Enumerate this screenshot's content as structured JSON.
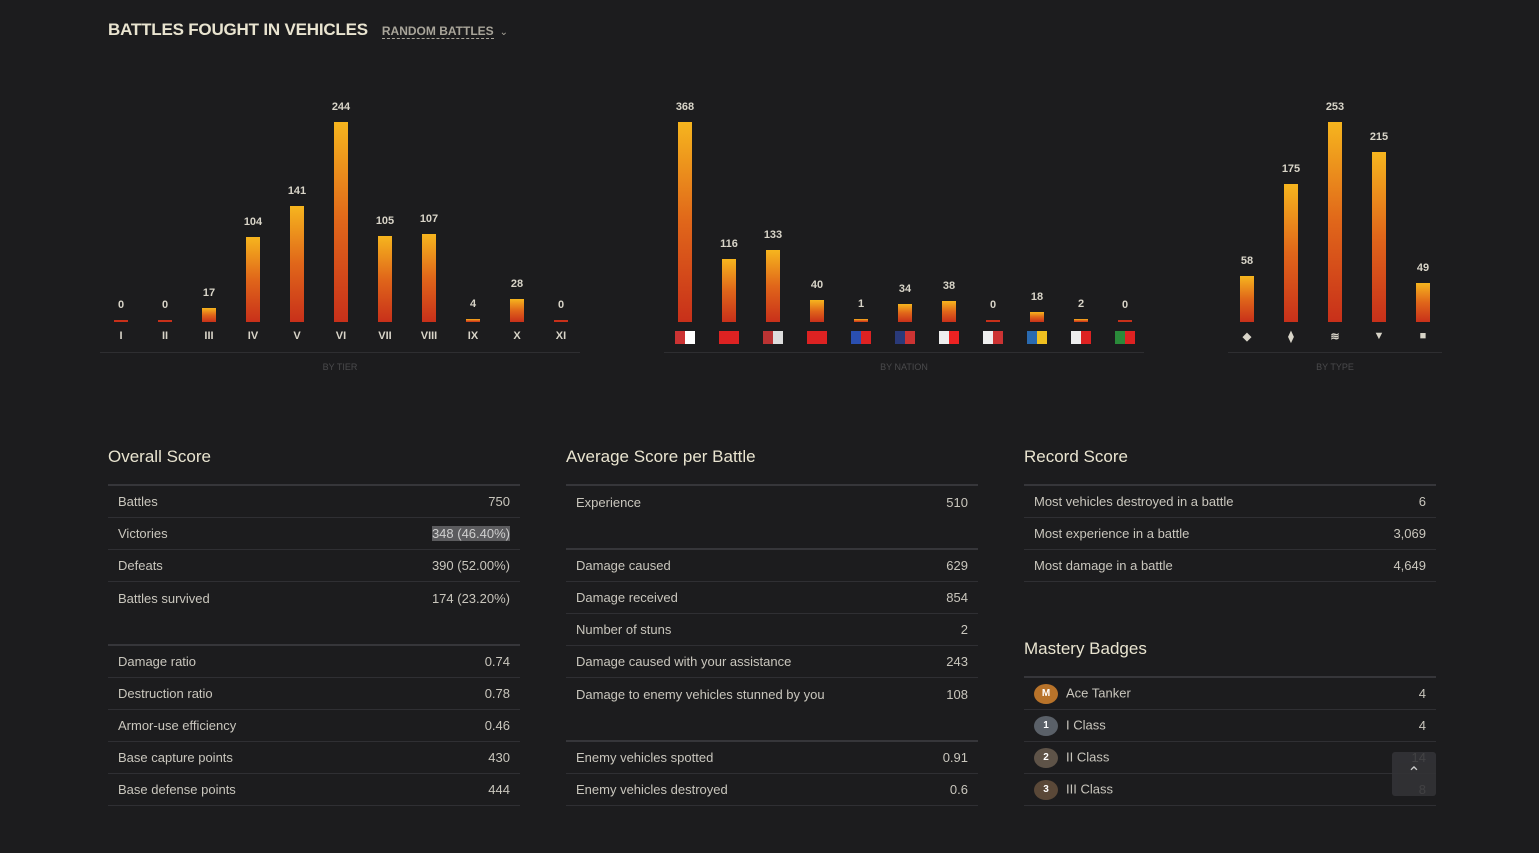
{
  "header": {
    "title": "BATTLES FOUGHT IN VEHICLES",
    "mode": "RANDOM BATTLES"
  },
  "chart_data": [
    {
      "type": "bar",
      "title": "BY TIER",
      "categories": [
        "I",
        "II",
        "III",
        "IV",
        "V",
        "VI",
        "VII",
        "VIII",
        "IX",
        "X",
        "XI"
      ],
      "values": [
        0,
        0,
        17,
        104,
        141,
        244,
        105,
        107,
        4,
        28,
        0
      ]
    },
    {
      "type": "bar",
      "title": "BY NATION",
      "categories": [
        "germany",
        "ussr",
        "usa",
        "china",
        "france",
        "uk",
        "japan",
        "czech",
        "sweden",
        "poland",
        "italy"
      ],
      "values": [
        368,
        116,
        133,
        40,
        1,
        34,
        38,
        0,
        18,
        2,
        0
      ]
    },
    {
      "type": "bar",
      "title": "BY TYPE",
      "categories": [
        "light-tank",
        "medium-tank",
        "heavy-tank",
        "tank-destroyer",
        "spg"
      ],
      "values": [
        58,
        175,
        253,
        215,
        49
      ]
    }
  ],
  "overall": {
    "title": "Overall Score",
    "groups": [
      [
        [
          "Battles",
          "750"
        ],
        [
          "Victories",
          "348 (46.40%)"
        ],
        [
          "Defeats",
          "390 (52.00%)"
        ],
        [
          "Battles survived",
          "174 (23.20%)"
        ]
      ],
      [
        [
          "Damage ratio",
          "0.74"
        ],
        [
          "Destruction ratio",
          "0.78"
        ],
        [
          "Armor-use efficiency",
          "0.46"
        ],
        [
          "Base capture points",
          "430"
        ],
        [
          "Base defense points",
          "444"
        ]
      ]
    ]
  },
  "average": {
    "title": "Average Score per Battle",
    "groups": [
      [
        [
          "Experience",
          "510"
        ]
      ],
      [
        [
          "Damage caused",
          "629"
        ],
        [
          "Damage received",
          "854"
        ],
        [
          "Number of stuns",
          "2"
        ],
        [
          "Damage caused with your assistance",
          "243"
        ],
        [
          "Damage to enemy vehicles stunned by you",
          "108"
        ]
      ],
      [
        [
          "Enemy vehicles spotted",
          "0.91"
        ],
        [
          "Enemy vehicles destroyed",
          "0.6"
        ]
      ]
    ]
  },
  "record": {
    "title": "Record Score",
    "groups": [
      [
        [
          "Most vehicles destroyed in a battle",
          "6"
        ],
        [
          "Most experience in a battle",
          "3,069"
        ],
        [
          "Most damage in a battle",
          "4,649"
        ]
      ]
    ]
  },
  "mastery": {
    "title": "Mastery Badges",
    "items": [
      {
        "mark": "M",
        "label": "Ace Tanker",
        "value": "4",
        "color": "#b8732a"
      },
      {
        "mark": "1",
        "label": "I Class",
        "value": "4",
        "color": "#5a6068"
      },
      {
        "mark": "2",
        "label": "II Class",
        "value": "14",
        "color": "#5e5348"
      },
      {
        "mark": "3",
        "label": "III Class",
        "value": "8",
        "color": "#5a4838"
      }
    ]
  },
  "flags": {
    "germany": [
      "#c33",
      "#fff"
    ],
    "ussr": [
      "#d22",
      "#d22"
    ],
    "usa": [
      "#b33",
      "#ddd"
    ],
    "china": [
      "#d22",
      "#d22"
    ],
    "france": [
      "#2a4fb0",
      "#d22"
    ],
    "uk": [
      "#2a3a7a",
      "#c33"
    ],
    "japan": [
      "#eee",
      "#e22"
    ],
    "czech": [
      "#eee",
      "#c33"
    ],
    "sweden": [
      "#2a6ab0",
      "#f0c020"
    ],
    "poland": [
      "#eee",
      "#d22"
    ],
    "italy": [
      "#2a8a3a",
      "#d22"
    ]
  }
}
